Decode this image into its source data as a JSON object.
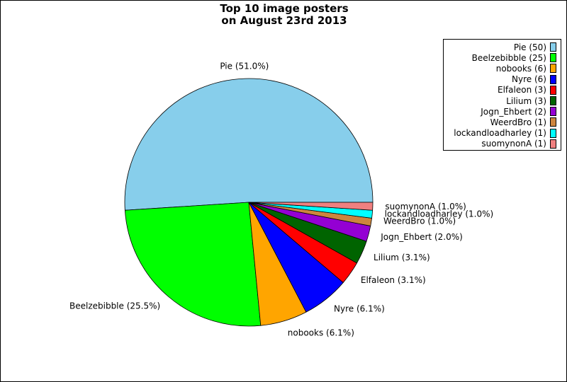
{
  "chart_data": {
    "type": "pie",
    "title_line1": "Top 10 image posters",
    "title_line2": "on August 23rd 2013",
    "slices": [
      {
        "name": "Pie",
        "value": 50,
        "legend": "Pie (50)",
        "label": "Pie (51.0%)",
        "color": "#87CEEB"
      },
      {
        "name": "Beelzebibble",
        "value": 25,
        "legend": "Beelzebibble (25)",
        "label": "Beelzebibble (25.5%)",
        "color": "#00FF00"
      },
      {
        "name": "nobooks",
        "value": 6,
        "legend": "nobooks (6)",
        "label": "nobooks (6.1%)",
        "color": "#FFA500"
      },
      {
        "name": "Nyre",
        "value": 6,
        "legend": "Nyre (6)",
        "label": "Nyre (6.1%)",
        "color": "#0000FF"
      },
      {
        "name": "Elfaleon",
        "value": 3,
        "legend": "Elfaleon (3)",
        "label": "Elfaleon (3.1%)",
        "color": "#FF0000"
      },
      {
        "name": "Lilium",
        "value": 3,
        "legend": "Lilium (3)",
        "label": "Lilium (3.1%)",
        "color": "#006400"
      },
      {
        "name": "Jogn_Ehbert",
        "value": 2,
        "legend": "Jogn_Ehbert (2)",
        "label": "Jogn_Ehbert (2.0%)",
        "color": "#9400D3"
      },
      {
        "name": "WeerdBro",
        "value": 1,
        "legend": "WeerdBro (1)",
        "label": "WeerdBro (1.0%)",
        "color": "#CD853F"
      },
      {
        "name": "lockandloadharley",
        "value": 1,
        "legend": "lockandloadharley (1)",
        "label": "lockandloadharley (1.0%)",
        "color": "#00FFFF"
      },
      {
        "name": "suomynonA",
        "value": 1,
        "legend": "suomynonA (1)",
        "label": "suomynonA (1.0%)",
        "color": "#F08080"
      }
    ],
    "legend_position": "top-right"
  }
}
